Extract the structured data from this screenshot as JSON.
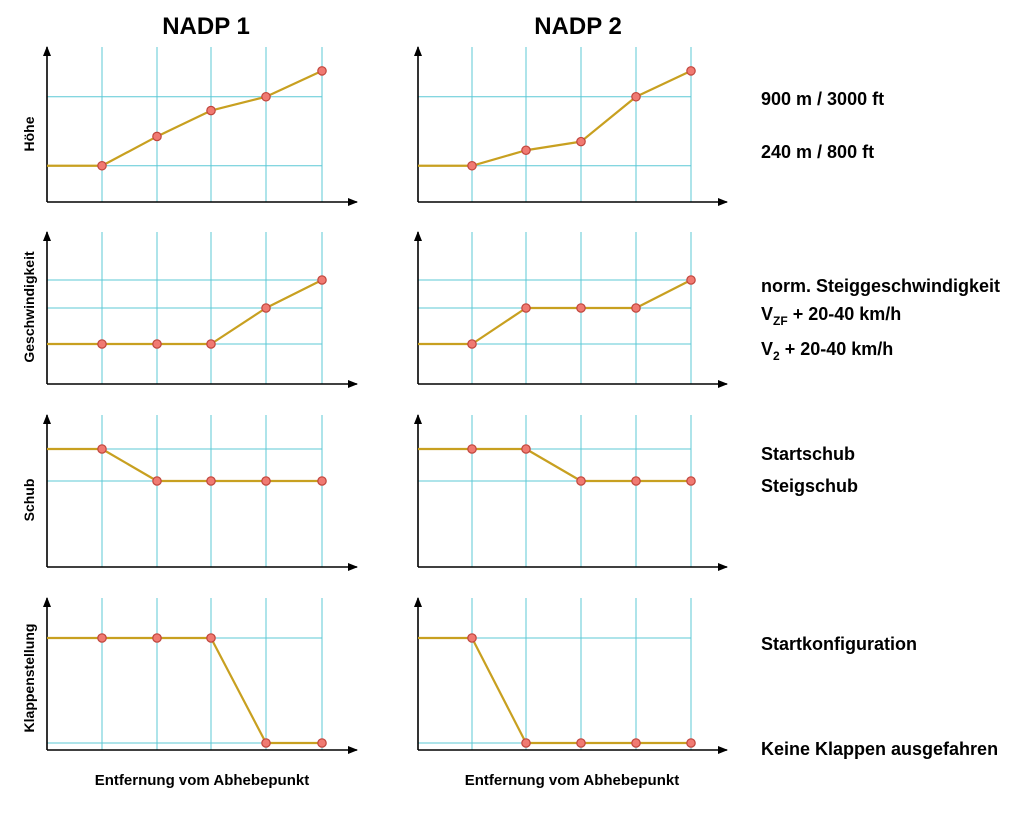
{
  "columns": [
    {
      "title": "NADP 1",
      "xlabel": "Entfernung vom Abhebepunkt"
    },
    {
      "title": "NADP 2",
      "xlabel": "Entfernung vom Abhebepunkt"
    }
  ],
  "rows": [
    {
      "label": "Höhe"
    },
    {
      "label": "Geschwindigkeit"
    },
    {
      "label": "Schub"
    },
    {
      "label": "Klappenstellung"
    }
  ],
  "reference_labels": {
    "hoehe": [
      {
        "text": "900 m / 3000 ft"
      },
      {
        "text": "240 m / 800 ft"
      }
    ],
    "geschwindigkeit": [
      {
        "text": "norm. Steiggeschwindigkeit"
      },
      {
        "main": "V",
        "sub": "ZF",
        "rest": " + 20-40 km/h"
      },
      {
        "main": "V",
        "sub": "2",
        "rest": " + 20-40 km/h"
      }
    ],
    "schub": [
      {
        "text": "Startschub"
      },
      {
        "text": "Steigschub"
      }
    ],
    "klappen": [
      {
        "text": "Startkonfiguration"
      },
      {
        "text": "Keine Klappen ausgefahren"
      }
    ]
  },
  "colors": {
    "grid": "#5cc8d6",
    "line": "#c8a020",
    "marker_fill": "#f07a72",
    "marker_stroke": "#c0453c",
    "axis": "#000000"
  },
  "chart_data": [
    {
      "type": "line",
      "procedure": "NADP 1",
      "quantity": "Höhe",
      "x": [
        0,
        1,
        2,
        3,
        4,
        5
      ],
      "y": [
        1.05,
        1.05,
        1.9,
        2.65,
        3.05,
        3.8
      ],
      "markers_from_index": 1
    },
    {
      "type": "line",
      "procedure": "NADP 2",
      "quantity": "Höhe",
      "x": [
        0,
        1,
        2,
        3,
        4,
        5
      ],
      "y": [
        1.05,
        1.05,
        1.5,
        1.75,
        3.05,
        3.8
      ],
      "markers_from_index": 1
    },
    {
      "type": "line",
      "procedure": "NADP 1",
      "quantity": "Geschwindigkeit",
      "x": [
        0,
        1,
        2,
        3,
        4,
        5
      ],
      "y": [
        1.0,
        1.0,
        1.0,
        1.0,
        1.9,
        2.6
      ],
      "markers_from_index": 1
    },
    {
      "type": "line",
      "procedure": "NADP 2",
      "quantity": "Geschwindigkeit",
      "x": [
        0,
        1,
        2,
        3,
        4,
        5
      ],
      "y": [
        1.0,
        1.0,
        1.9,
        1.9,
        1.9,
        2.6
      ],
      "markers_from_index": 1
    },
    {
      "type": "line",
      "procedure": "NADP 1",
      "quantity": "Schub",
      "x": [
        0,
        1,
        2,
        3,
        4,
        5
      ],
      "y": [
        2.0,
        2.0,
        1.0,
        1.0,
        1.0,
        1.0
      ],
      "markers_from_index": 1
    },
    {
      "type": "line",
      "procedure": "NADP 2",
      "quantity": "Schub",
      "x": [
        0,
        1,
        2,
        3,
        4,
        5
      ],
      "y": [
        2.0,
        2.0,
        2.0,
        1.0,
        1.0,
        1.0
      ],
      "markers_from_index": 1
    },
    {
      "type": "line",
      "procedure": "NADP 1",
      "quantity": "Klappenstellung",
      "x": [
        0,
        1,
        2,
        3,
        4,
        5
      ],
      "y": [
        1,
        1,
        1,
        1,
        0,
        0
      ],
      "markers_from_index": 1
    },
    {
      "type": "line",
      "procedure": "NADP 2",
      "quantity": "Klappenstellung",
      "x": [
        0,
        1,
        2,
        3,
        4,
        5
      ],
      "y": [
        1,
        1,
        0,
        0,
        0,
        0
      ],
      "markers_from_index": 1
    }
  ]
}
